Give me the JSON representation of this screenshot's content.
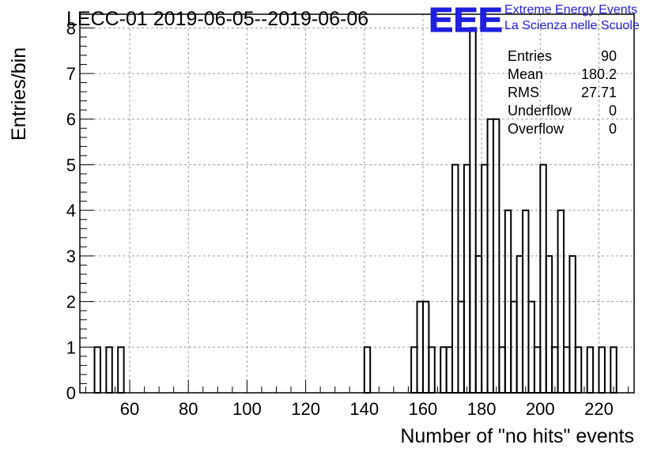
{
  "header": {
    "title": "LECC-01 2019-06-05--2019-06-06",
    "logo_letters": "EEE",
    "logo_line1": "Extreme Energy Events",
    "logo_line2": "La Scienza nelle Scuole"
  },
  "stats": [
    {
      "label": "Entries",
      "value": "90"
    },
    {
      "label": "Mean",
      "value": "180.2"
    },
    {
      "label": "RMS",
      "value": "27.71"
    },
    {
      "label": "Underflow",
      "value": "0"
    },
    {
      "label": "Overflow",
      "value": "0"
    }
  ],
  "colors": {
    "line": "#000000",
    "grid": "#9a9a9a",
    "logo": "#1f1fe0"
  },
  "chart_data": {
    "type": "bar",
    "style": "step-histogram",
    "title": "LECC-01 2019-06-05--2019-06-06",
    "xlabel": "Number of \"no hits\" events",
    "ylabel": "Entries/bin",
    "xlim": [
      43,
      232
    ],
    "ylim": [
      0,
      8.3
    ],
    "grid": true,
    "bin_width": 2,
    "x_ticks": [
      60,
      80,
      100,
      120,
      140,
      160,
      180,
      200,
      220
    ],
    "y_ticks": [
      0,
      1,
      2,
      3,
      4,
      5,
      6,
      7,
      8
    ],
    "bins": [
      {
        "x": 48,
        "value": 1
      },
      {
        "x": 50,
        "value": 0
      },
      {
        "x": 52,
        "value": 1
      },
      {
        "x": 54,
        "value": 0
      },
      {
        "x": 56,
        "value": 1
      },
      {
        "x": 140,
        "value": 1
      },
      {
        "x": 156,
        "value": 1
      },
      {
        "x": 158,
        "value": 2
      },
      {
        "x": 160,
        "value": 2
      },
      {
        "x": 162,
        "value": 1
      },
      {
        "x": 164,
        "value": 0
      },
      {
        "x": 166,
        "value": 1
      },
      {
        "x": 168,
        "value": 1
      },
      {
        "x": 170,
        "value": 5
      },
      {
        "x": 172,
        "value": 2
      },
      {
        "x": 174,
        "value": 5
      },
      {
        "x": 176,
        "value": 8
      },
      {
        "x": 178,
        "value": 3
      },
      {
        "x": 180,
        "value": 5
      },
      {
        "x": 182,
        "value": 6
      },
      {
        "x": 184,
        "value": 6
      },
      {
        "x": 186,
        "value": 1
      },
      {
        "x": 188,
        "value": 4
      },
      {
        "x": 190,
        "value": 2
      },
      {
        "x": 192,
        "value": 3
      },
      {
        "x": 194,
        "value": 4
      },
      {
        "x": 196,
        "value": 2
      },
      {
        "x": 198,
        "value": 1
      },
      {
        "x": 200,
        "value": 5
      },
      {
        "x": 202,
        "value": 3
      },
      {
        "x": 204,
        "value": 1
      },
      {
        "x": 206,
        "value": 4
      },
      {
        "x": 208,
        "value": 1
      },
      {
        "x": 210,
        "value": 3
      },
      {
        "x": 212,
        "value": 1
      },
      {
        "x": 214,
        "value": 0
      },
      {
        "x": 216,
        "value": 1
      },
      {
        "x": 218,
        "value": 0
      },
      {
        "x": 220,
        "value": 1
      },
      {
        "x": 222,
        "value": 0
      },
      {
        "x": 224,
        "value": 1
      }
    ]
  }
}
